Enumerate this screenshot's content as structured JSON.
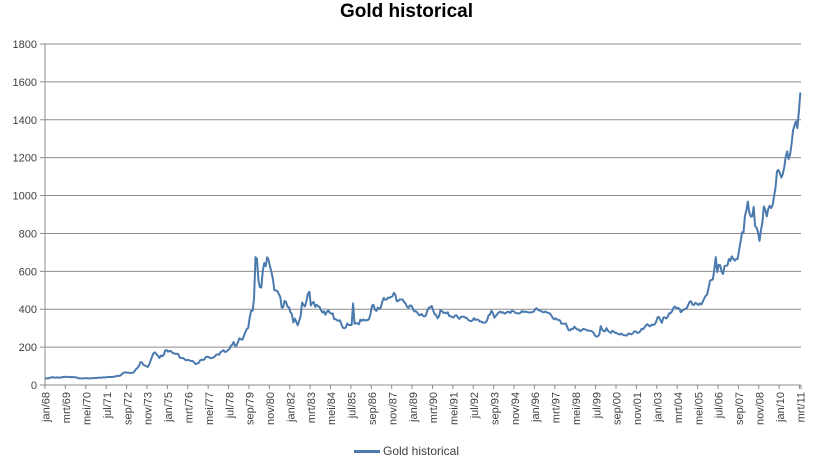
{
  "title": "Gold historical",
  "legend": {
    "label": "Gold historical"
  },
  "colors": {
    "line": "#4A7AAE",
    "grid": "#8C8C8C",
    "axis": "#8C8C8C",
    "text": "#3F3F3F",
    "background": "#FFFFFF"
  },
  "chart_data": {
    "type": "line",
    "title": "Gold historical",
    "xlabel": "",
    "ylabel": "",
    "ylim": [
      0,
      1800
    ],
    "ytick_step": 200,
    "y_tick_labels": [
      "0",
      "200",
      "400",
      "600",
      "800",
      "1000",
      "1200",
      "1400",
      "1600",
      "1800"
    ],
    "grid": "horizontal",
    "legend_position": "bottom",
    "x_start": "jan/68",
    "x_end": "mrt/11",
    "x_label_every_n_points": 14,
    "x_tick_labels": [
      "jan/68",
      "mrt/69",
      "mei/70",
      "jul/71",
      "sep/72",
      "nov/73",
      "jan/75",
      "mrt/76",
      "mei/77",
      "jul/78",
      "sep/79",
      "nov/80",
      "jan/82",
      "mrt/83",
      "mei/84",
      "jul/85",
      "sep/86",
      "nov/87",
      "jan/89",
      "mrt/90",
      "mei/91",
      "jul/92",
      "sep/93",
      "nov/94",
      "jan/96",
      "mrt/97",
      "mei/98",
      "jul/99",
      "sep/00",
      "nov/01",
      "jan/03",
      "mrt/04",
      "mei/05",
      "jul/06",
      "sep/07",
      "nov/08",
      "jan/10",
      "mrt/11"
    ],
    "series": [
      {
        "name": "Gold historical",
        "values": [
          35,
          35,
          35,
          38,
          41,
          41,
          39,
          39,
          40,
          39,
          39,
          41,
          42,
          43,
          43,
          43,
          43,
          41,
          42,
          41,
          41,
          40,
          37,
          35,
          35,
          35,
          35,
          36,
          36,
          35,
          35,
          35,
          36,
          37,
          37,
          37,
          38,
          39,
          39,
          39,
          41,
          40,
          41,
          43,
          42,
          42,
          43,
          44,
          46,
          48,
          48,
          49,
          55,
          62,
          66,
          67,
          65,
          65,
          63,
          64,
          65,
          74,
          84,
          90,
          102,
          120,
          120,
          107,
          103,
          100,
          95,
          107,
          129,
          150,
          168,
          172,
          163,
          154,
          143,
          155,
          152,
          159,
          182,
          184,
          176,
          180,
          178,
          170,
          167,
          164,
          165,
          163,
          144,
          143,
          142,
          139,
          131,
          131,
          133,
          128,
          127,
          126,
          118,
          110,
          114,
          116,
          130,
          134,
          132,
          136,
          148,
          149,
          147,
          141,
          143,
          145,
          150,
          159,
          162,
          160,
          173,
          178,
          184,
          175,
          176,
          184,
          189,
          206,
          212,
          227,
          206,
          208,
          227,
          246,
          242,
          239,
          258,
          279,
          295,
          301,
          355,
          392,
          392,
          455,
          675,
          665,
          554,
          517,
          514,
          601,
          644,
          627,
          674,
          661,
          624,
          595,
          557,
          500,
          499,
          496,
          480,
          465,
          409,
          410,
          444,
          438,
          413,
          410,
          384,
          374,
          330,
          350,
          334,
          315,
          339,
          364,
          436,
          422,
          415,
          444,
          481,
          492,
          420,
          433,
          438,
          413,
          423,
          416,
          412,
          394,
          382,
          389,
          371,
          386,
          394,
          381,
          377,
          378,
          348,
          348,
          341,
          340,
          341,
          320,
          303,
          299,
          304,
          325,
          317,
          317,
          317,
          430,
          324,
          326,
          325,
          321,
          345,
          339,
          346,
          340,
          343,
          342,
          349,
          377,
          418,
          424,
          399,
          391,
          408,
          401,
          409,
          438,
          460,
          450,
          451,
          461,
          460,
          465,
          468,
          486,
          477,
          442,
          444,
          452,
          451,
          451,
          438,
          431,
          413,
          407,
          420,
          419,
          404,
          388,
          390,
          384,
          371,
          368,
          375,
          365,
          362,
          367,
          394,
          409,
          410,
          417,
          393,
          374,
          369,
          352,
          363,
          395,
          390,
          381,
          382,
          378,
          384,
          364,
          363,
          358,
          357,
          367,
          368,
          356,
          349,
          359,
          360,
          361,
          355,
          354,
          344,
          339,
          337,
          341,
          353,
          343,
          346,
          344,
          335,
          335,
          329,
          329,
          330,
          342,
          367,
          372,
          392,
          379,
          355,
          364,
          374,
          383,
          387,
          382,
          384,
          377,
          381,
          386,
          386,
          380,
          392,
          390,
          384,
          379,
          379,
          377,
          382,
          391,
          385,
          388,
          386,
          384,
          383,
          383,
          385,
          387,
          400,
          405,
          396,
          393,
          392,
          385,
          384,
          388,
          383,
          381,
          378,
          369,
          355,
          347,
          352,
          345,
          344,
          341,
          324,
          324,
          323,
          325,
          306,
          289,
          289,
          297,
          296,
          308,
          299,
          292,
          293,
          284,
          289,
          296,
          294,
          292,
          287,
          287,
          286,
          283,
          277,
          261,
          256,
          257,
          265,
          311,
          293,
          284,
          284,
          300,
          286,
          280,
          275,
          286,
          282,
          275,
          274,
          270,
          266,
          272,
          266,
          262,
          263,
          261,
          272,
          270,
          268,
          272,
          283,
          283,
          276,
          276,
          282,
          296,
          294,
          303,
          315,
          321,
          313,
          310,
          319,
          317,
          319,
          333,
          357,
          359,
          341,
          328,
          356,
          357,
          351,
          360,
          379,
          379,
          390,
          408,
          414,
          405,
          407,
          403,
          384,
          392,
          398,
          401,
          405,
          421,
          439,
          442,
          424,
          423,
          434,
          429,
          422,
          431,
          425,
          438,
          456,
          470,
          477,
          510,
          550,
          555,
          557,
          611,
          675,
          596,
          634,
          633,
          598,
          586,
          628,
          630,
          631,
          665,
          655,
          679,
          667,
          656,
          665,
          665,
          713,
          755,
          806,
          803,
          890,
          922,
          968,
          910,
          889,
          890,
          940,
          839,
          830,
          807,
          761,
          816,
          859,
          943,
          924,
          890,
          929,
          946,
          934,
          949,
          997,
          1043,
          1127,
          1135,
          1118,
          1095,
          1113,
          1149,
          1205,
          1233,
          1193,
          1216,
          1271,
          1342,
          1370,
          1391,
          1356,
          1440,
          1540
        ]
      }
    ]
  }
}
